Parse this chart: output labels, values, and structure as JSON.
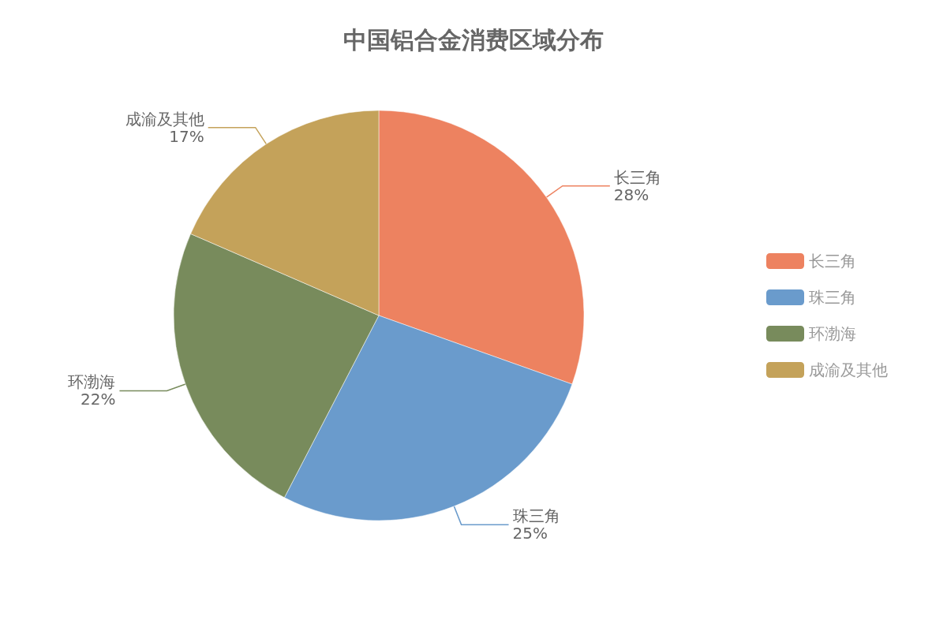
{
  "chart_data": {
    "type": "pie",
    "title": "中国铝合金消费区域分布",
    "categories": [
      "长三角",
      "珠三角",
      "环渤海",
      "成渝及其他"
    ],
    "values": [
      28,
      25,
      22,
      17
    ],
    "value_labels": [
      "28%",
      "25%",
      "22%",
      "17%"
    ],
    "colors": [
      "#ed8260",
      "#6a9bcc",
      "#788b5c",
      "#c4a25a"
    ],
    "legend": "right"
  }
}
